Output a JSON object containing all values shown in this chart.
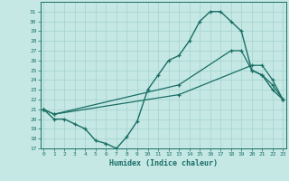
{
  "xlabel": "Humidex (Indice chaleur)",
  "bg_color": "#c5e8e5",
  "grid_color": "#a8d5d0",
  "line_color": "#1a6e65",
  "line1_x": [
    0,
    1,
    2,
    3,
    4,
    5,
    6,
    7,
    8,
    9,
    10,
    11,
    12,
    13,
    14,
    15,
    16,
    17,
    18,
    19,
    20,
    21,
    22,
    23
  ],
  "line1_y": [
    21,
    20,
    20,
    19.5,
    19.0,
    17.8,
    17.5,
    17.0,
    18.2,
    19.8,
    23.0,
    24.5,
    26.0,
    26.5,
    28.0,
    30.0,
    31.0,
    31.0,
    30.0,
    29.0,
    25.0,
    24.5,
    23.0,
    22.0
  ],
  "line2_x": [
    0,
    1,
    13,
    18,
    19,
    20,
    21,
    22,
    23
  ],
  "line2_y": [
    21,
    20.5,
    23.5,
    27.0,
    27.0,
    25.0,
    24.5,
    23.5,
    22.0
  ],
  "line3_x": [
    0,
    1,
    13,
    20,
    21,
    22,
    23
  ],
  "line3_y": [
    21,
    20.5,
    22.5,
    25.5,
    25.5,
    24.0,
    22.0
  ],
  "ylim": [
    17,
    32
  ],
  "xlim": [
    -0.3,
    23.3
  ],
  "yticks": [
    17,
    18,
    19,
    20,
    21,
    22,
    23,
    24,
    25,
    26,
    27,
    28,
    29,
    30,
    31
  ],
  "xticks": [
    0,
    1,
    2,
    3,
    4,
    5,
    6,
    7,
    8,
    9,
    10,
    11,
    12,
    13,
    14,
    15,
    16,
    17,
    18,
    19,
    20,
    21,
    22,
    23
  ]
}
